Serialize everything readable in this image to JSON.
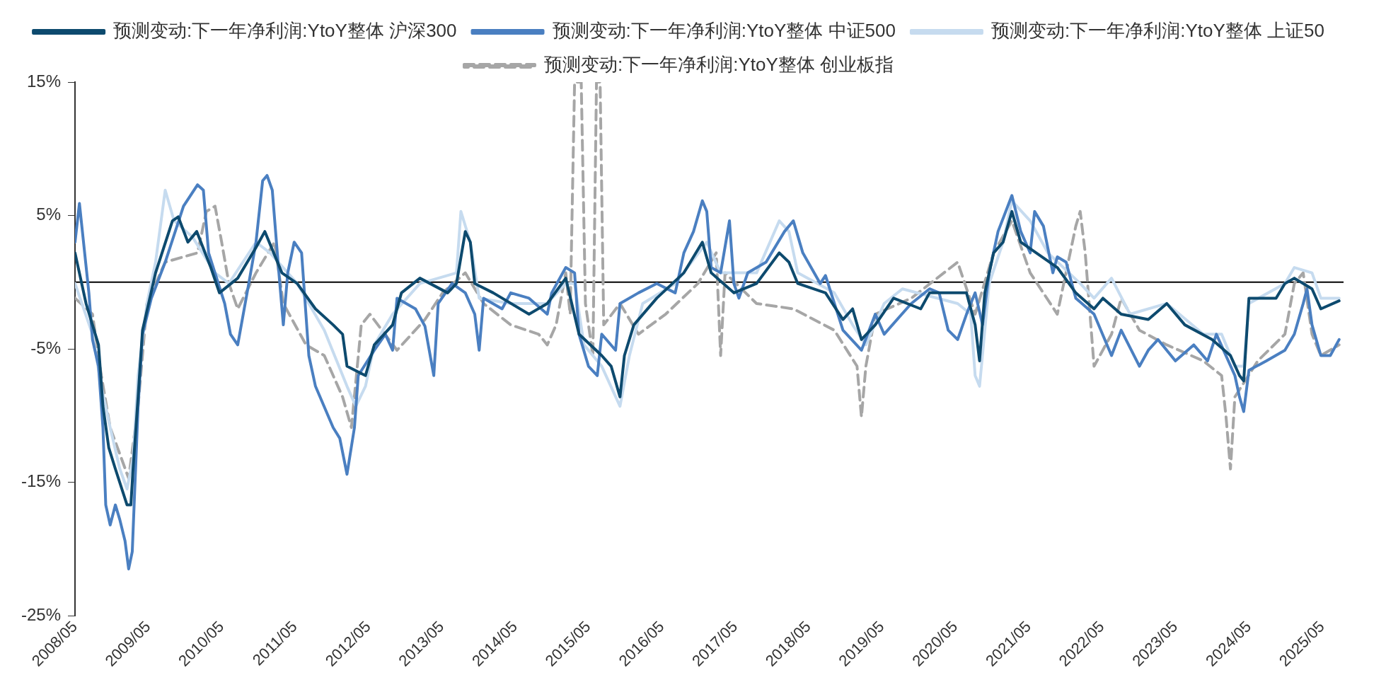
{
  "chart_data": {
    "type": "line",
    "legend": "top",
    "grid": false,
    "marker": "none",
    "xlim": [
      "2008-05",
      "2025-08-15"
    ],
    "xticks": [
      {
        "value": "2008-05",
        "label": "2008/05"
      },
      {
        "value": "2009-05",
        "label": "2009/05"
      },
      {
        "value": "2010-05",
        "label": "2010/05"
      },
      {
        "value": "2011-05",
        "label": "2011/05"
      },
      {
        "value": "2012-05",
        "label": "2012/05"
      },
      {
        "value": "2013-05",
        "label": "2013/05"
      },
      {
        "value": "2014-05",
        "label": "2014/05"
      },
      {
        "value": "2015-05",
        "label": "2015/05"
      },
      {
        "value": "2016-05",
        "label": "2016/05"
      },
      {
        "value": "2017-05",
        "label": "2017/05"
      },
      {
        "value": "2018-05",
        "label": "2018/05"
      },
      {
        "value": "2019-05",
        "label": "2019/05"
      },
      {
        "value": "2020-05",
        "label": "2020/05"
      },
      {
        "value": "2021-05",
        "label": "2021/05"
      },
      {
        "value": "2022-05",
        "label": "2022/05"
      },
      {
        "value": "2023-05",
        "label": "2023/05"
      },
      {
        "value": "2024-05",
        "label": "2024/05"
      },
      {
        "value": "2025-05",
        "label": "2025/05"
      }
    ],
    "ylim": [
      -25,
      15
    ],
    "yticks": [
      {
        "value": -25,
        "label": "-25%"
      },
      {
        "value": -15,
        "label": "-15%"
      },
      {
        "value": -5,
        "label": "-5%"
      },
      {
        "value": 5,
        "label": "5%"
      },
      {
        "value": 15,
        "label": "15%"
      }
    ],
    "ref_lines": [
      {
        "axis": "y",
        "value": 0,
        "color": "#000000"
      }
    ],
    "series": [
      {
        "name": "预测变动:下一年净利润:YtoY整体 沪深300",
        "color": "#0d4a6e",
        "line_style": "solid",
        "x": [
          "2008-05-01",
          "2008-06-25",
          "2008-08-26",
          "2008-09-17",
          "2008-10-16",
          "2008-11-18",
          "2009-01-15",
          "2009-02-03",
          "2009-02-14",
          "2009-03-11",
          "2009-04-02",
          "2009-06-06",
          "2009-08-29",
          "2009-09-27",
          "2009-11-14",
          "2009-12-28",
          "2010-03-08",
          "2010-04-20",
          "2010-07-20",
          "2010-10-19",
          "2010-12-02",
          "2011-02-25",
          "2011-05-12",
          "2011-08-11",
          "2011-11-07",
          "2011-12-24",
          "2012-01-15",
          "2012-04-16",
          "2012-05-30",
          "2012-08-29",
          "2012-10-12",
          "2013-01-12",
          "2013-05-30",
          "2013-07-13",
          "2013-08-26",
          "2013-09-20",
          "2013-10-12",
          "2014-01-12",
          "2014-07-09",
          "2014-10-08",
          "2015-01-08",
          "2015-03-15",
          "2015-07-06",
          "2015-08-22",
          "2015-10-05",
          "2015-10-27",
          "2015-12-13",
          "2016-04-05",
          "2016-08-18",
          "2016-11-18",
          "2017-01-01",
          "2017-04-24",
          "2017-08-15",
          "2017-12-06",
          "2018-01-23",
          "2018-03-08",
          "2018-07-24",
          "2018-10-19",
          "2018-12-06",
          "2019-01-19",
          "2019-03-29",
          "2019-06-28",
          "2019-11-10",
          "2019-12-24",
          "2020-06-25",
          "2020-08-07",
          "2020-08-29",
          "2020-09-24",
          "2020-11-07",
          "2020-12-24",
          "2021-02-06",
          "2021-03-22",
          "2021-09-20",
          "2021-12-21",
          "2022-03-22",
          "2022-05-05",
          "2022-08-04",
          "2022-12-17",
          "2023-03-19",
          "2023-06-17",
          "2023-10-30",
          "2024-01-30",
          "2024-03-15",
          "2024-04-05",
          "2024-05-01",
          "2024-09-13",
          "2024-10-27",
          "2024-12-13",
          "2025-03-11",
          "2025-04-24",
          "2025-07-24"
        ],
        "values": [
          2.2,
          -1.6,
          -4.7,
          -9.3,
          -12.4,
          -14.0,
          -16.7,
          -16.7,
          -14.0,
          -8.6,
          -3.6,
          0.7,
          4.6,
          4.9,
          3.0,
          3.8,
          1.1,
          -0.8,
          0.3,
          2.6,
          3.8,
          0.7,
          -0.1,
          -2.0,
          -3.2,
          -3.9,
          -6.3,
          -7.0,
          -4.7,
          -3.2,
          -0.8,
          0.3,
          -0.8,
          -0.1,
          3.8,
          3.0,
          -0.1,
          -0.8,
          -2.4,
          -1.6,
          0.3,
          -3.9,
          -5.5,
          -6.3,
          -8.6,
          -5.5,
          -3.2,
          -1.2,
          0.7,
          3.0,
          0.7,
          -0.8,
          -0.1,
          2.2,
          1.5,
          -0.1,
          -0.8,
          -2.8,
          -2.0,
          -4.3,
          -3.2,
          -1.2,
          -2.0,
          -0.8,
          -0.8,
          -3.2,
          -5.9,
          -0.8,
          2.2,
          3.0,
          5.3,
          3.0,
          1.1,
          -0.8,
          -2.0,
          -1.2,
          -2.4,
          -2.8,
          -1.6,
          -3.2,
          -4.3,
          -5.5,
          -7.0,
          -7.4,
          -1.2,
          -1.2,
          -0.1,
          0.3,
          -0.5,
          -2.0,
          -1.4
        ]
      },
      {
        "name": "预测变动:下一年净利润:YtoY整体 中证500",
        "color": "#4a7fc1",
        "line_style": "solid",
        "x": [
          "2008-05-01",
          "2008-05-23",
          "2008-07-09",
          "2008-07-27",
          "2008-08-26",
          "2008-09-17",
          "2008-10-01",
          "2008-10-23",
          "2008-11-18",
          "2008-12-10",
          "2009-01-05",
          "2009-01-23",
          "2009-02-10",
          "2009-03-11",
          "2009-04-02",
          "2009-05-16",
          "2009-07-24",
          "2009-10-23",
          "2010-01-01",
          "2010-01-30",
          "2010-02-25",
          "2010-05-16",
          "2010-06-14",
          "2010-07-20",
          "2010-09-13",
          "2010-10-19",
          "2010-11-21",
          "2010-12-13",
          "2011-01-08",
          "2011-02-10",
          "2011-03-04",
          "2011-03-26",
          "2011-04-27",
          "2011-06-03",
          "2011-07-09",
          "2011-08-11",
          "2011-11-07",
          "2011-12-10",
          "2012-01-15",
          "2012-02-21",
          "2012-03-11",
          "2012-05-30",
          "2012-07-24",
          "2012-08-29",
          "2012-09-20",
          "2012-12-21",
          "2013-02-06",
          "2013-03-22",
          "2013-04-13",
          "2013-06-21",
          "2013-08-26",
          "2013-10-12",
          "2013-11-03",
          "2013-11-25",
          "2014-02-25",
          "2014-04-09",
          "2014-07-09",
          "2014-10-08",
          "2014-10-30",
          "2015-01-08",
          "2015-02-21",
          "2015-03-15",
          "2015-05-01",
          "2015-06-14",
          "2015-07-06",
          "2015-09-13",
          "2015-10-05",
          "2016-01-05",
          "2016-04-05",
          "2016-07-06",
          "2016-08-18",
          "2016-10-05",
          "2016-11-18",
          "2016-12-10",
          "2017-01-01",
          "2017-02-17",
          "2017-04-02",
          "2017-04-24",
          "2017-05-19",
          "2017-07-02",
          "2017-10-01",
          "2018-01-01",
          "2018-02-14",
          "2018-04-02",
          "2018-06-28",
          "2018-07-24",
          "2018-10-19",
          "2019-01-19",
          "2019-03-29",
          "2019-05-12",
          "2019-09-24",
          "2019-12-24",
          "2020-02-10",
          "2020-03-26",
          "2020-05-12",
          "2020-06-25",
          "2020-08-07",
          "2020-09-13",
          "2020-10-16",
          "2020-11-29",
          "2021-02-06",
          "2021-03-22",
          "2021-05-08",
          "2021-05-30",
          "2021-07-13",
          "2021-08-29",
          "2021-09-20",
          "2021-11-03",
          "2021-12-21",
          "2022-03-22",
          "2022-06-17",
          "2022-08-04",
          "2022-11-03",
          "2022-12-17",
          "2023-02-03",
          "2023-05-01",
          "2023-07-31",
          "2023-10-08",
          "2023-11-21",
          "2024-02-21",
          "2024-03-15",
          "2024-04-05",
          "2024-05-01",
          "2024-07-27",
          "2024-10-27",
          "2024-12-13",
          "2025-01-26",
          "2025-02-14",
          "2025-03-11",
          "2025-04-24",
          "2025-06-10",
          "2025-07-24"
        ],
        "values": [
          3.0,
          5.9,
          -0.8,
          -4.3,
          -6.3,
          -10.9,
          -16.7,
          -18.2,
          -16.7,
          -17.8,
          -19.4,
          -21.5,
          -20.2,
          -9.3,
          -3.9,
          -1.2,
          1.5,
          5.7,
          7.3,
          6.9,
          2.2,
          -1.6,
          -3.9,
          -4.7,
          -0.1,
          3.0,
          7.6,
          8.0,
          6.9,
          0.7,
          -3.2,
          0.7,
          3.0,
          2.2,
          -5.5,
          -7.8,
          -10.9,
          -11.7,
          -14.4,
          -10.9,
          -7.0,
          -5.1,
          -3.9,
          -5.1,
          -1.2,
          -2.0,
          -3.3,
          -7.0,
          -1.6,
          -0.1,
          -0.8,
          -2.4,
          -5.1,
          -1.2,
          -2.0,
          -0.8,
          -1.2,
          -2.4,
          -0.8,
          1.1,
          0.7,
          -3.9,
          -6.3,
          -7.0,
          -3.9,
          -5.1,
          -1.6,
          -0.8,
          -0.1,
          -0.8,
          2.2,
          3.8,
          6.1,
          5.3,
          1.1,
          0.7,
          4.6,
          -0.1,
          -1.2,
          0.7,
          1.5,
          3.8,
          4.6,
          2.2,
          -0.1,
          0.5,
          -3.6,
          -5.1,
          -2.4,
          -3.9,
          -1.6,
          -0.5,
          -0.8,
          -3.6,
          -4.3,
          -2.4,
          -0.8,
          -3.2,
          0.7,
          3.8,
          6.5,
          3.8,
          2.2,
          5.3,
          4.2,
          0.7,
          1.9,
          1.5,
          -1.2,
          -2.4,
          -5.5,
          -3.6,
          -6.3,
          -5.1,
          -4.3,
          -5.9,
          -4.7,
          -5.9,
          -3.9,
          -7.0,
          -8.6,
          -9.7,
          -6.6,
          -5.9,
          -5.1,
          -3.9,
          -1.6,
          -0.5,
          -3.2,
          -5.5,
          -5.5,
          -4.3
        ]
      },
      {
        "name": "预测变动:下一年净利润:YtoY整体 上证50",
        "color": "#c6dbef",
        "line_style": "solid",
        "x": [
          "2008-05-01",
          "2008-07-27",
          "2008-09-09",
          "2008-10-23",
          "2008-12-10",
          "2009-01-15",
          "2009-02-14",
          "2009-03-11",
          "2009-04-24",
          "2009-06-06",
          "2009-07-24",
          "2009-09-06",
          "2009-12-06",
          "2010-03-29",
          "2010-06-06",
          "2010-10-19",
          "2010-12-28",
          "2011-05-12",
          "2011-09-24",
          "2012-01-15",
          "2012-02-28",
          "2012-04-16",
          "2012-05-30",
          "2012-08-29",
          "2013-01-12",
          "2013-07-13",
          "2013-08-04",
          "2013-09-20",
          "2013-11-03",
          "2014-04-09",
          "2014-10-08",
          "2015-01-08",
          "2015-02-21",
          "2015-04-09",
          "2015-07-06",
          "2015-10-05",
          "2015-11-21",
          "2016-01-26",
          "2016-07-06",
          "2016-12-10",
          "2017-02-17",
          "2017-08-15",
          "2017-12-06",
          "2018-01-23",
          "2018-03-08",
          "2018-09-06",
          "2018-12-06",
          "2019-02-10",
          "2019-05-12",
          "2019-08-11",
          "2020-05-12",
          "2020-07-16",
          "2020-08-07",
          "2020-08-29",
          "2020-10-16",
          "2020-12-24",
          "2021-02-06",
          "2021-05-08",
          "2021-08-04",
          "2022-01-12",
          "2022-03-22",
          "2022-06-17",
          "2022-09-17",
          "2023-03-19",
          "2023-09-17",
          "2023-12-17",
          "2024-02-21",
          "2024-04-05",
          "2024-05-01",
          "2024-10-27",
          "2024-12-13",
          "2025-03-11",
          "2025-04-24",
          "2025-07-24"
        ],
        "values": [
          -0.1,
          -3.9,
          -7.8,
          -10.9,
          -14.0,
          -15.5,
          -13.2,
          -7.0,
          -1.6,
          1.5,
          6.9,
          4.6,
          3.4,
          0.7,
          -0.1,
          3.0,
          2.2,
          -0.1,
          -3.6,
          -7.8,
          -9.3,
          -7.8,
          -4.7,
          -2.4,
          -0.1,
          0.7,
          5.3,
          3.0,
          -1.2,
          -1.6,
          -1.6,
          -0.1,
          -0.1,
          -4.7,
          -6.3,
          -9.3,
          -5.5,
          -1.6,
          -0.1,
          3.0,
          0.7,
          0.7,
          4.6,
          3.8,
          0.7,
          -0.8,
          -3.2,
          -4.7,
          -1.6,
          -0.5,
          -1.6,
          -2.4,
          -7.0,
          -7.8,
          -0.1,
          3.0,
          6.1,
          4.6,
          2.2,
          -0.1,
          -1.2,
          0.3,
          -2.4,
          -1.6,
          -3.9,
          -3.9,
          -6.3,
          -6.3,
          -1.6,
          -0.1,
          1.1,
          0.7,
          -1.2,
          -1.2
        ]
      },
      {
        "name": "预测变动:下一年净利润:YtoY整体 创业板指",
        "color": "#a6a6a6",
        "line_style": "dashed",
        "x": [
          "2008-05-01",
          "2008-07-27",
          "2008-09-09",
          "2008-10-23",
          "2009-01-23",
          "2009-03-11",
          "2009-04-24",
          "2009-07-24",
          "2010-01-01",
          "2010-02-14",
          "2010-03-29",
          "2010-05-01",
          "2010-06-06",
          "2010-07-20",
          "2010-10-19",
          "2011-01-19",
          "2011-03-04",
          "2011-06-25",
          "2011-09-24",
          "2011-12-24",
          "2012-02-06",
          "2012-03-26",
          "2012-05-08",
          "2012-09-20",
          "2013-02-06",
          "2013-05-05",
          "2013-08-26",
          "2013-11-25",
          "2014-04-09",
          "2014-08-26",
          "2014-10-08",
          "2014-11-21",
          "2015-01-08",
          "2015-01-30",
          "2015-02-21",
          "2015-03-26",
          "2015-04-16",
          "2015-05-23",
          "2015-06-10",
          "2015-06-28",
          "2015-07-16",
          "2015-10-05",
          "2016-01-05",
          "2016-05-19",
          "2016-10-27",
          "2017-01-26",
          "2017-02-17",
          "2017-03-11",
          "2017-08-15",
          "2018-02-14",
          "2018-09-06",
          "2018-12-28",
          "2019-01-19",
          "2019-02-10",
          "2019-03-29",
          "2019-09-24",
          "2020-05-12",
          "2020-08-07",
          "2020-11-07",
          "2021-02-06",
          "2021-05-08",
          "2021-09-20",
          "2021-12-21",
          "2022-01-12",
          "2022-02-06",
          "2022-03-22",
          "2022-06-17",
          "2022-08-04",
          "2022-11-03",
          "2023-03-19",
          "2023-09-17",
          "2023-12-17",
          "2024-01-08",
          "2024-01-30",
          "2024-02-21",
          "2024-06-14",
          "2024-10-27",
          "2024-12-13",
          "2025-01-26",
          "2025-03-11",
          "2025-04-24",
          "2025-07-24"
        ],
        "values": [
          -1.2,
          -2.4,
          -7.0,
          -10.9,
          -14.7,
          -9.3,
          -1.6,
          1.5,
          2.2,
          5.3,
          5.7,
          3.0,
          -0.1,
          -2.0,
          0.7,
          3.0,
          -1.6,
          -4.7,
          -5.5,
          -8.6,
          -10.9,
          -3.2,
          -2.4,
          -5.1,
          -2.8,
          -0.8,
          0.7,
          -1.6,
          -3.2,
          -3.9,
          -4.7,
          -3.2,
          0.7,
          -2.4,
          15,
          15,
          -1.6,
          -5.5,
          15,
          15,
          -3.2,
          -1.6,
          -3.9,
          -2.4,
          -0.1,
          2.2,
          -5.5,
          0.7,
          -1.6,
          -2.0,
          -3.6,
          -6.3,
          -10.1,
          -6.3,
          -2.4,
          -1.2,
          1.5,
          -2.4,
          2.2,
          4.6,
          0.7,
          -2.4,
          4.2,
          5.3,
          2.2,
          -6.3,
          -3.9,
          -1.2,
          -3.6,
          -4.7,
          -5.9,
          -7.0,
          -10.1,
          -14.0,
          -8.6,
          -5.9,
          -3.9,
          -0.1,
          0.7,
          -3.9,
          -5.5,
          -4.7
        ]
      }
    ]
  }
}
